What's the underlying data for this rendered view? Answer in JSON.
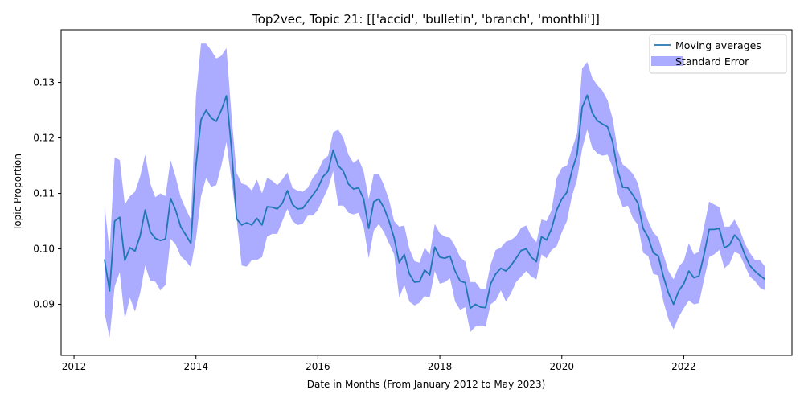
{
  "chart_data": {
    "type": "line",
    "title": "Top2vec, Topic 21: [['accid', 'bulletin', 'branch', 'monthli']]",
    "xlabel": "Date in Months (From January 2012 to May 2023)",
    "ylabel": "Topic Proportion",
    "xlim": [
      "2011-10-15",
      "2023-10-10"
    ],
    "ylim": [
      0.0808,
      0.1395
    ],
    "x_ticks": [
      "2012",
      "2014",
      "2016",
      "2018",
      "2020",
      "2022"
    ],
    "y_ticks": [
      "0.09",
      "0.10",
      "0.11",
      "0.12",
      "0.13"
    ],
    "grid": false,
    "legend": {
      "placement": "top-right",
      "entries": [
        "Moving averages",
        "Standard Error"
      ]
    },
    "colors": {
      "line": "#1f77b4",
      "band": "#0000ff",
      "band_opacity": 0.33
    },
    "series": [
      {
        "name": "Moving averages",
        "points": [
          [
            "2012-07",
            0.0981
          ],
          [
            "2012-08",
            0.0924
          ],
          [
            "2012-09",
            0.105
          ],
          [
            "2012-10",
            0.1057
          ],
          [
            "2012-11",
            0.0979
          ],
          [
            "2012-12",
            0.1002
          ],
          [
            "2013-01",
            0.0996
          ],
          [
            "2013-02",
            0.1023
          ],
          [
            "2013-03",
            0.107
          ],
          [
            "2013-04",
            0.1031
          ],
          [
            "2013-05",
            0.1019
          ],
          [
            "2013-06",
            0.1015
          ],
          [
            "2013-07",
            0.1018
          ],
          [
            "2013-08",
            0.1091
          ],
          [
            "2013-09",
            0.107
          ],
          [
            "2013-10",
            0.104
          ],
          [
            "2013-11",
            0.1025
          ],
          [
            "2013-12",
            0.101
          ],
          [
            "2014-01",
            0.115
          ],
          [
            "2014-02",
            0.1233
          ],
          [
            "2014-03",
            0.125
          ],
          [
            "2014-04",
            0.1236
          ],
          [
            "2014-05",
            0.123
          ],
          [
            "2014-06",
            0.125
          ],
          [
            "2014-07",
            0.1276
          ],
          [
            "2014-08",
            0.118
          ],
          [
            "2014-09",
            0.1054
          ],
          [
            "2014-10",
            0.1043
          ],
          [
            "2014-11",
            0.1047
          ],
          [
            "2014-12",
            0.1043
          ],
          [
            "2015-01",
            0.1055
          ],
          [
            "2015-02",
            0.1043
          ],
          [
            "2015-03",
            0.1076
          ],
          [
            "2015-04",
            0.1075
          ],
          [
            "2015-05",
            0.1072
          ],
          [
            "2015-06",
            0.1082
          ],
          [
            "2015-07",
            0.1105
          ],
          [
            "2015-08",
            0.108
          ],
          [
            "2015-09",
            0.1072
          ],
          [
            "2015-10",
            0.1073
          ],
          [
            "2015-11",
            0.1085
          ],
          [
            "2015-12",
            0.1097
          ],
          [
            "2016-01",
            0.111
          ],
          [
            "2016-02",
            0.113
          ],
          [
            "2016-03",
            0.114
          ],
          [
            "2016-04",
            0.1178
          ],
          [
            "2016-05",
            0.115
          ],
          [
            "2016-06",
            0.114
          ],
          [
            "2016-07",
            0.1117
          ],
          [
            "2016-08",
            0.1108
          ],
          [
            "2016-09",
            0.111
          ],
          [
            "2016-10",
            0.109
          ],
          [
            "2016-11",
            0.1037
          ],
          [
            "2016-12",
            0.1085
          ],
          [
            "2017-01",
            0.109
          ],
          [
            "2017-02",
            0.1074
          ],
          [
            "2017-03",
            0.105
          ],
          [
            "2017-04",
            0.102
          ],
          [
            "2017-05",
            0.0975
          ],
          [
            "2017-06",
            0.099
          ],
          [
            "2017-07",
            0.0955
          ],
          [
            "2017-08",
            0.094
          ],
          [
            "2017-09",
            0.0941
          ],
          [
            "2017-10",
            0.0962
          ],
          [
            "2017-11",
            0.0953
          ],
          [
            "2017-12",
            0.1003
          ],
          [
            "2018-01",
            0.0985
          ],
          [
            "2018-02",
            0.0983
          ],
          [
            "2018-03",
            0.0987
          ],
          [
            "2018-04",
            0.096
          ],
          [
            "2018-05",
            0.0942
          ],
          [
            "2018-06",
            0.0939
          ],
          [
            "2018-07",
            0.0893
          ],
          [
            "2018-08",
            0.09
          ],
          [
            "2018-09",
            0.0895
          ],
          [
            "2018-10",
            0.0894
          ],
          [
            "2018-11",
            0.0937
          ],
          [
            "2018-12",
            0.0955
          ],
          [
            "2019-01",
            0.0965
          ],
          [
            "2019-02",
            0.096
          ],
          [
            "2019-03",
            0.097
          ],
          [
            "2019-04",
            0.0983
          ],
          [
            "2019-05",
            0.0997
          ],
          [
            "2019-06",
            0.1
          ],
          [
            "2019-07",
            0.0985
          ],
          [
            "2019-08",
            0.0977
          ],
          [
            "2019-09",
            0.1022
          ],
          [
            "2019-10",
            0.1016
          ],
          [
            "2019-11",
            0.1037
          ],
          [
            "2019-12",
            0.107
          ],
          [
            "2020-01",
            0.109
          ],
          [
            "2020-02",
            0.1102
          ],
          [
            "2020-03",
            0.1141
          ],
          [
            "2020-04",
            0.117
          ],
          [
            "2020-05",
            0.1255
          ],
          [
            "2020-06",
            0.1277
          ],
          [
            "2020-07",
            0.1245
          ],
          [
            "2020-08",
            0.1231
          ],
          [
            "2020-09",
            0.1225
          ],
          [
            "2020-10",
            0.122
          ],
          [
            "2020-11",
            0.1193
          ],
          [
            "2020-12",
            0.1142
          ],
          [
            "2021-01",
            0.1111
          ],
          [
            "2021-02",
            0.111
          ],
          [
            "2021-03",
            0.1097
          ],
          [
            "2021-04",
            0.1082
          ],
          [
            "2021-05",
            0.1037
          ],
          [
            "2021-06",
            0.1021
          ],
          [
            "2021-07",
            0.0993
          ],
          [
            "2021-08",
            0.0987
          ],
          [
            "2021-09",
            0.095
          ],
          [
            "2021-10",
            0.092
          ],
          [
            "2021-11",
            0.09
          ],
          [
            "2021-12",
            0.0924
          ],
          [
            "2022-01",
            0.0937
          ],
          [
            "2022-02",
            0.096
          ],
          [
            "2022-03",
            0.0948
          ],
          [
            "2022-04",
            0.0951
          ],
          [
            "2022-05",
            0.099
          ],
          [
            "2022-06",
            0.1035
          ],
          [
            "2022-07",
            0.1035
          ],
          [
            "2022-08",
            0.1037
          ],
          [
            "2022-09",
            0.1002
          ],
          [
            "2022-10",
            0.1007
          ],
          [
            "2022-11",
            0.1025
          ],
          [
            "2022-12",
            0.1015
          ],
          [
            "2023-01",
            0.099
          ],
          [
            "2023-02",
            0.097
          ],
          [
            "2023-03",
            0.096
          ],
          [
            "2023-04",
            0.0952
          ],
          [
            "2023-05",
            0.0945
          ]
        ]
      }
    ],
    "bands": [
      {
        "name": "Standard Error",
        "upper": [
          0.108,
          0.0995,
          0.1165,
          0.116,
          0.108,
          0.1095,
          0.1103,
          0.113,
          0.117,
          0.1118,
          0.1093,
          0.11,
          0.1095,
          0.116,
          0.113,
          0.1093,
          0.1072,
          0.1053,
          0.1275,
          0.137,
          0.137,
          0.1358,
          0.1343,
          0.1348,
          0.1362,
          0.124,
          0.1137,
          0.1118,
          0.1115,
          0.1105,
          0.1125,
          0.11,
          0.1128,
          0.1123,
          0.1115,
          0.1125,
          0.1138,
          0.111,
          0.1105,
          0.1103,
          0.111,
          0.1128,
          0.114,
          0.116,
          0.1168,
          0.121,
          0.1215,
          0.12,
          0.117,
          0.1155,
          0.1162,
          0.114,
          0.109,
          0.1135,
          0.1135,
          0.1115,
          0.1088,
          0.105,
          0.104,
          0.1042,
          0.1,
          0.0978,
          0.0975,
          0.1002,
          0.099,
          0.1045,
          0.1028,
          0.1022,
          0.102,
          0.1005,
          0.0985,
          0.0977,
          0.094,
          0.094,
          0.0928,
          0.0928,
          0.0972,
          0.0998,
          0.1002,
          0.1013,
          0.1016,
          0.1023,
          0.1038,
          0.1042,
          0.1023,
          0.1012,
          0.1053,
          0.105,
          0.107,
          0.1128,
          0.1146,
          0.115,
          0.118,
          0.1208,
          0.1325,
          0.1337,
          0.1308,
          0.1295,
          0.1285,
          0.1268,
          0.1235,
          0.1178,
          0.1152,
          0.1145,
          0.1135,
          0.1118,
          0.1075,
          0.105,
          0.103,
          0.102,
          0.099,
          0.096,
          0.0945,
          0.0968,
          0.0978,
          0.101,
          0.099,
          0.0995,
          0.104,
          0.1085,
          0.108,
          0.1075,
          0.104,
          0.104,
          0.1053,
          0.1035,
          0.101,
          0.0993,
          0.098,
          0.098,
          0.0968
        ],
        "lower": [
          0.0885,
          0.084,
          0.0932,
          0.0958,
          0.0873,
          0.0912,
          0.0887,
          0.092,
          0.097,
          0.0942,
          0.0941,
          0.0925,
          0.0935,
          0.1018,
          0.1008,
          0.0987,
          0.0978,
          0.0967,
          0.1018,
          0.1095,
          0.1128,
          0.1112,
          0.1115,
          0.115,
          0.1193,
          0.1122,
          0.1055,
          0.097,
          0.0968,
          0.098,
          0.098,
          0.0985,
          0.1022,
          0.1027,
          0.1027,
          0.105,
          0.1072,
          0.105,
          0.1043,
          0.1045,
          0.106,
          0.106,
          0.107,
          0.109,
          0.111,
          0.114,
          0.1078,
          0.1078,
          0.1065,
          0.1062,
          0.1065,
          0.104,
          0.0983,
          0.1033,
          0.1045,
          0.103,
          0.101,
          0.099,
          0.0912,
          0.0935,
          0.0905,
          0.0898,
          0.0903,
          0.0915,
          0.0912,
          0.096,
          0.0937,
          0.094,
          0.0947,
          0.0905,
          0.089,
          0.0895,
          0.085,
          0.086,
          0.0862,
          0.086,
          0.09,
          0.0907,
          0.0925,
          0.0905,
          0.092,
          0.094,
          0.095,
          0.096,
          0.095,
          0.0945,
          0.099,
          0.0983,
          0.0998,
          0.1005,
          0.103,
          0.105,
          0.1095,
          0.1125,
          0.118,
          0.1215,
          0.1182,
          0.1172,
          0.1168,
          0.117,
          0.1147,
          0.11,
          0.1075,
          0.1078,
          0.1055,
          0.1043,
          0.0993,
          0.0987,
          0.0955,
          0.0952,
          0.0905,
          0.0873,
          0.0855,
          0.0877,
          0.0893,
          0.0907,
          0.09,
          0.0902,
          0.0945,
          0.0985,
          0.099,
          0.0998,
          0.0965,
          0.0973,
          0.0995,
          0.099,
          0.097,
          0.095,
          0.0942,
          0.093,
          0.0925
        ]
      }
    ]
  }
}
